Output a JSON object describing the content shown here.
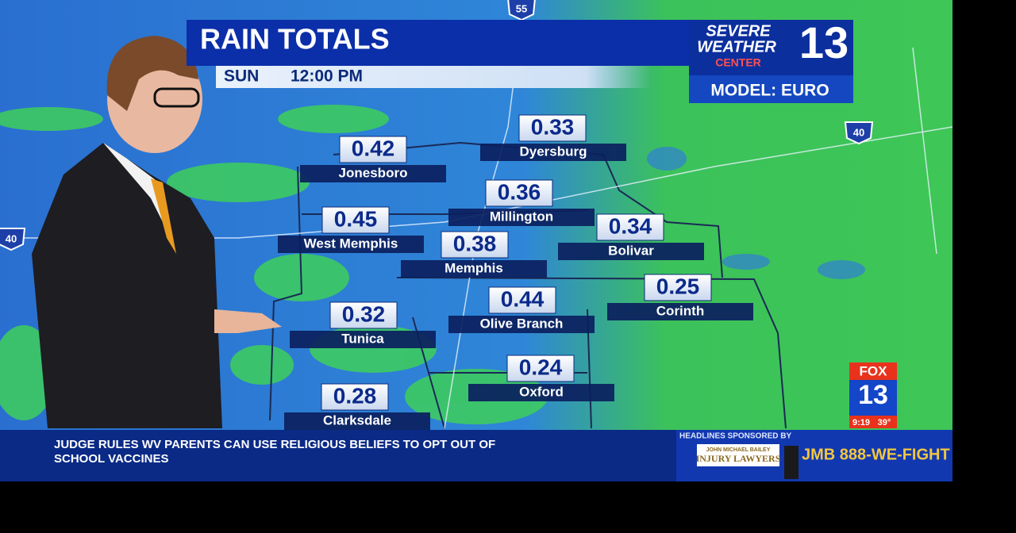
{
  "header": {
    "title": "RAIN TOTALS",
    "time_day": "SUN",
    "time": "12:00 PM"
  },
  "logo": {
    "line1": "SEVERE",
    "line2": "WEATHER",
    "line3": "CENTER",
    "channel": "13",
    "model": "MODEL: EURO"
  },
  "shields": [
    "55",
    "40",
    "40"
  ],
  "locations": [
    {
      "name": "Jonesboro",
      "value": 0.42
    },
    {
      "name": "Dyersburg",
      "value": 0.33
    },
    {
      "name": "Millington",
      "value": 0.36
    },
    {
      "name": "West Memphis",
      "value": 0.45
    },
    {
      "name": "Bolivar",
      "value": 0.34
    },
    {
      "name": "Memphis",
      "value": 0.38
    },
    {
      "name": "Corinth",
      "value": 0.25
    },
    {
      "name": "Olive Branch",
      "value": 0.44
    },
    {
      "name": "Tunica",
      "value": 0.32
    },
    {
      "name": "Oxford",
      "value": 0.24
    },
    {
      "name": "Clarksdale",
      "value": 0.28
    }
  ],
  "ticker": {
    "headline_line1": "JUDGE RULES WV PARENTS CAN USE RELIGIOUS BELIEFS TO OPT OUT OF",
    "headline_line2": "SCHOOL VACCINES",
    "sponsor_label": "HEADLINES SPONSORED BY",
    "sponsor_name_top": "JOHN MICHAEL BAILEY",
    "sponsor_name": "INJURY LAWYERS",
    "sponsor_phone": "JMB 888-WE-FIGHT"
  },
  "bug": {
    "network": "FOX",
    "channel": "13",
    "clock": "9:19",
    "temperature": "39°"
  }
}
